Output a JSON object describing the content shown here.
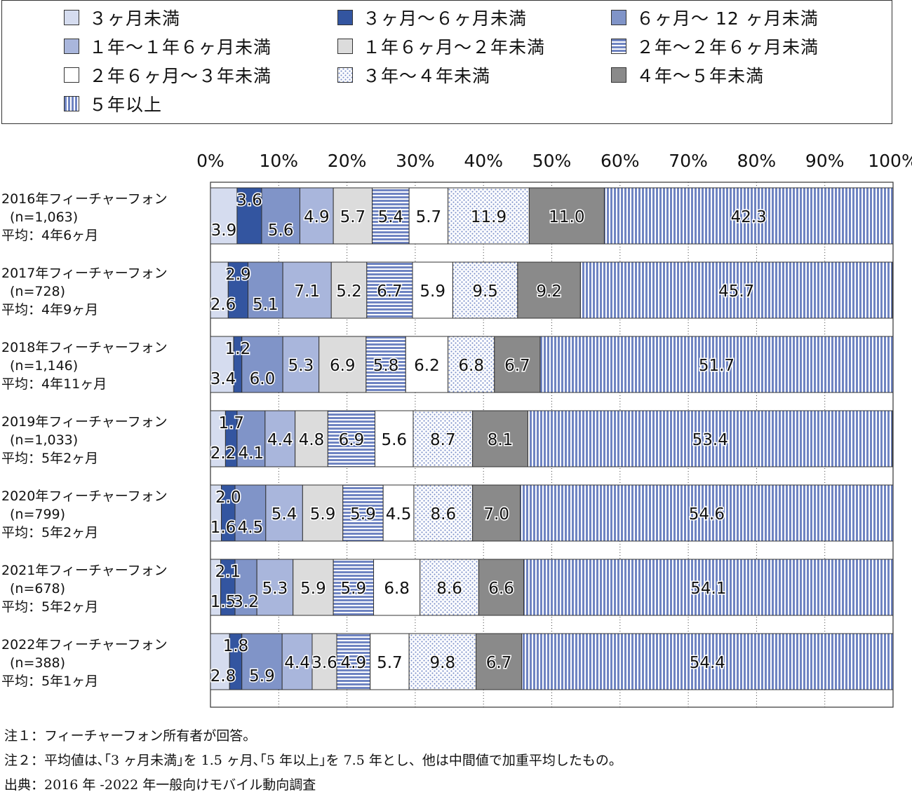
{
  "legend_items": [
    {
      "label": "３ヶ月未満",
      "pattern": "p1"
    },
    {
      "label": "３ヶ月～６ヶ月未満",
      "pattern": "p2"
    },
    {
      "label": "６ヶ月～ 12 ヶ月未満",
      "pattern": "p3"
    },
    {
      "label": "１年～１年６ヶ月未満",
      "pattern": "p4"
    },
    {
      "label": "１年６ヶ月～２年未満",
      "pattern": "p5"
    },
    {
      "label": "２年～２年６ヶ月未満",
      "pattern": "p6"
    },
    {
      "label": "２年６ヶ月～３年未満",
      "pattern": "p7"
    },
    {
      "label": "３年～４年未満",
      "pattern": "p8"
    },
    {
      "label": "４年～５年未満",
      "pattern": "p9"
    },
    {
      "label": "５年以上",
      "pattern": "p10"
    }
  ],
  "chart_data": {
    "type": "bar",
    "orientation": "horizontal",
    "stacked": "percent",
    "categories": [
      {
        "lines": [
          "2016年フィーチャーフォン",
          "(n=1,063)",
          "平均：4年6ヶ月"
        ]
      },
      {
        "lines": [
          "2017年フィーチャーフォン",
          "(n=728)",
          "平均：4年9ヶ月"
        ]
      },
      {
        "lines": [
          "2018年フィーチャーフォン",
          "(n=1,146)",
          "平均：4年11ヶ月"
        ]
      },
      {
        "lines": [
          "2019年フィーチャーフォン",
          "(n=1,033)",
          "平均：5年2ヶ月"
        ]
      },
      {
        "lines": [
          "2020年フィーチャーフォン",
          "(n=799)",
          "平均：5年2ヶ月"
        ]
      },
      {
        "lines": [
          "2021年フィーチャーフォン",
          "(n=678)",
          "平均：5年2ヶ月"
        ]
      },
      {
        "lines": [
          "2022年フィーチャーフォン",
          "(n=388)",
          "平均：5年1ヶ月"
        ]
      }
    ],
    "xticks": [
      "0%",
      "10%",
      "20%",
      "30%",
      "40%",
      "50%",
      "60%",
      "70%",
      "80%",
      "90%",
      "100%"
    ],
    "xlim": [
      0,
      100
    ],
    "grid": "vertical-dotted",
    "series": [
      {
        "name": "３ヶ月未満",
        "values": [
          3.9,
          2.6,
          3.4,
          2.2,
          1.6,
          1.5,
          2.8
        ]
      },
      {
        "name": "３ヶ月～６ヶ月未満",
        "values": [
          3.6,
          2.9,
          1.2,
          1.7,
          2.0,
          2.1,
          1.8
        ]
      },
      {
        "name": "６ヶ月～ 12 ヶ月未満",
        "values": [
          5.6,
          5.1,
          6.0,
          4.1,
          4.5,
          3.2,
          5.9
        ]
      },
      {
        "name": "１年～１年６ヶ月未満",
        "values": [
          4.9,
          7.1,
          5.3,
          4.4,
          5.4,
          5.3,
          4.4
        ]
      },
      {
        "name": "１年６ヶ月～２年未満",
        "values": [
          5.7,
          5.2,
          6.9,
          4.8,
          5.9,
          5.9,
          3.6
        ]
      },
      {
        "name": "２年～２年６ヶ月未満",
        "values": [
          5.4,
          6.7,
          5.8,
          6.9,
          5.9,
          5.9,
          4.9
        ]
      },
      {
        "name": "２年６ヶ月～３年未満",
        "values": [
          5.7,
          5.9,
          6.2,
          5.6,
          4.5,
          6.8,
          5.7
        ]
      },
      {
        "name": "３年～４年未満",
        "values": [
          11.9,
          9.5,
          6.8,
          8.7,
          8.6,
          8.6,
          9.8
        ]
      },
      {
        "name": "４年～５年未満",
        "values": [
          11.0,
          9.2,
          6.7,
          8.1,
          7.0,
          6.6,
          6.7
        ]
      },
      {
        "name": "５年以上",
        "values": [
          42.3,
          45.7,
          51.7,
          53.4,
          54.6,
          54.1,
          54.4
        ]
      }
    ],
    "data_labels": [
      [
        "3.9",
        "3.6",
        "5.6",
        "4.9",
        "5.7",
        "5.4",
        "5.7",
        "11.9",
        "11.0",
        "42.3"
      ],
      [
        "2.6",
        "2.9",
        "5.1",
        "7.1",
        "5.2",
        "6.7",
        "5.9",
        "9.5",
        "9.2",
        "45.7"
      ],
      [
        "3.4",
        "1.2",
        "6.0",
        "5.3",
        "6.9",
        "5.8",
        "6.2",
        "6.8",
        "6.7",
        "51.7"
      ],
      [
        "2.2",
        "1.7",
        "4.1",
        "4.4",
        "4.8",
        "6.9",
        "5.6",
        "8.7",
        "8.1",
        "53.4"
      ],
      [
        "1.6",
        "2.0",
        "4.5",
        "5.4",
        "5.9",
        "5.9",
        "4.5",
        "8.6",
        "7.0",
        "54.6"
      ],
      [
        "1.5",
        "2.1",
        "3.2",
        "5.3",
        "5.9",
        "5.9",
        "6.8",
        "8.6",
        "6.6",
        "54.1"
      ],
      [
        "2.8",
        "1.8",
        "5.9",
        "4.4",
        "3.6",
        "4.9",
        "5.7",
        "9.8",
        "6.7",
        "54.4"
      ]
    ]
  },
  "notes": [
    "注１：フィーチャーフォン所有者が回答。",
    "注２：平均値は､｢3 ヶ月未満｣を 1.5 ヶ月､｢5 年以上｣を 7.5 年とし、他は中間値で加重平均したもの。",
    "出典：2016 年 -2022 年一般向けモバイル動向調査"
  ]
}
